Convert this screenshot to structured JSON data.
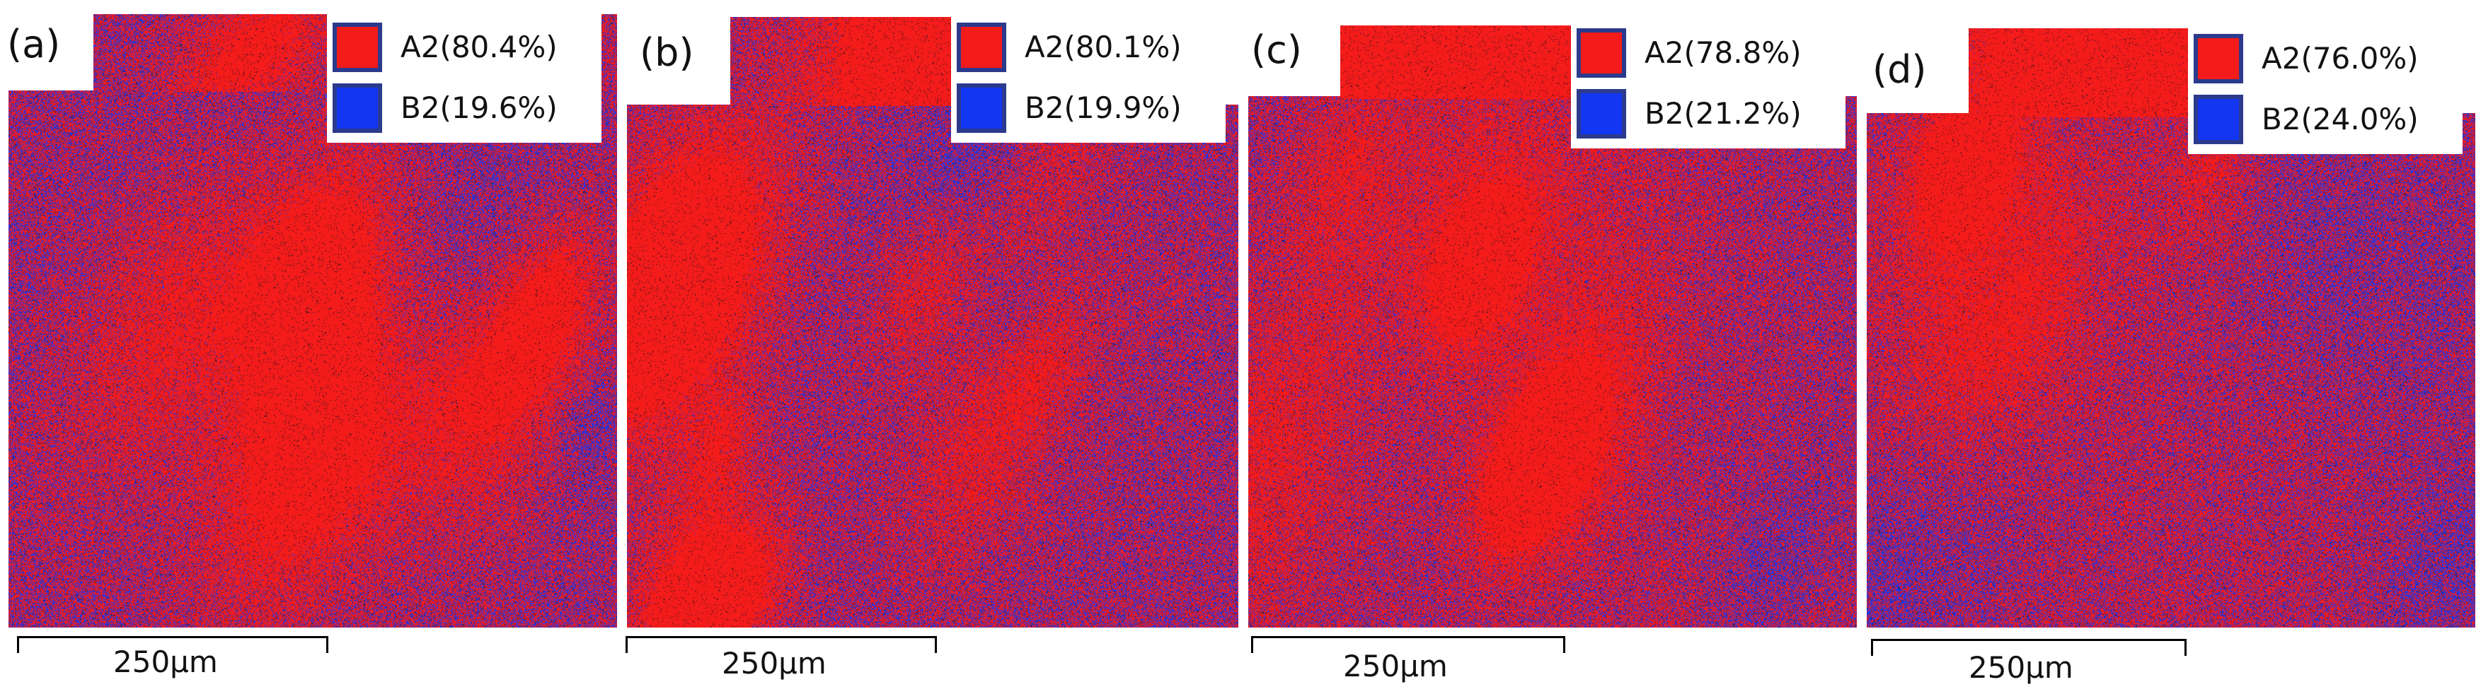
{
  "panels": [
    {
      "label": "(a)",
      "a2_legend": "A2(80.4%)",
      "b2_legend": "B2(19.6%)",
      "a2_fraction": 0.804,
      "b2_fraction": 0.196,
      "scale": "250μm"
    },
    {
      "label": "(b)",
      "a2_legend": "A2(80.1%)",
      "b2_legend": "B2(19.9%)",
      "a2_fraction": 0.801,
      "b2_fraction": 0.199,
      "scale": "250μm"
    },
    {
      "label": "(c)",
      "a2_legend": "A2(78.8%)",
      "b2_legend": "B2(21.2%)",
      "a2_fraction": 0.788,
      "b2_fraction": 0.212,
      "scale": "250μm"
    },
    {
      "label": "(d)",
      "a2_legend": "A2(76.0%)",
      "b2_legend": "B2(24.0%)",
      "a2_fraction": 0.76,
      "b2_fraction": 0.24,
      "scale": "250μm"
    }
  ],
  "colors": {
    "a2": "#f41b1b",
    "b2": "#1236f2",
    "border": "#2b3a8c",
    "boundary": "#111111"
  }
}
